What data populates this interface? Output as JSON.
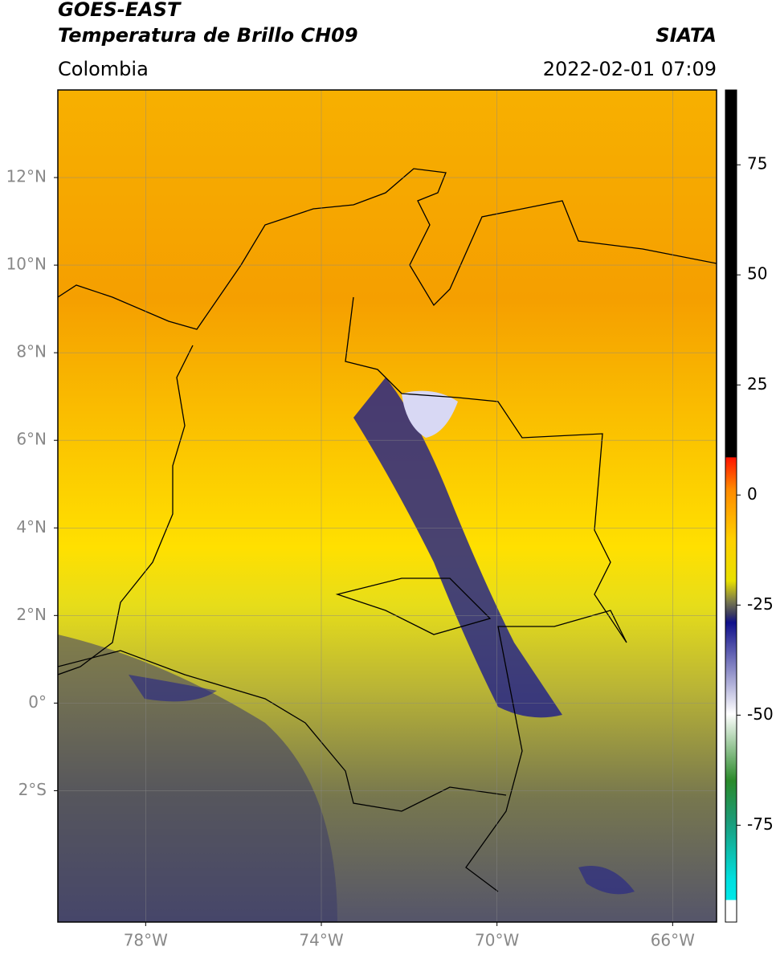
{
  "header": {
    "title_line1": "GOES-EAST",
    "title_line2": "Temperatura de Brillo CH09",
    "region": "Colombia",
    "source": "SIATA",
    "datetime": "2022-02-01 07:09"
  },
  "map": {
    "xlim": [
      -80,
      -65
    ],
    "ylim": [
      -5,
      14
    ],
    "xticks": [
      {
        "value": -78,
        "label": "78°W"
      },
      {
        "value": -74,
        "label": "74°W"
      },
      {
        "value": -70,
        "label": "70°W"
      },
      {
        "value": -66,
        "label": "66°W"
      }
    ],
    "yticks": [
      {
        "value": 12,
        "label": "12°N"
      },
      {
        "value": 10,
        "label": "10°N"
      },
      {
        "value": 8,
        "label": "8°N"
      },
      {
        "value": 6,
        "label": "6°N"
      },
      {
        "value": 4,
        "label": "4°N"
      },
      {
        "value": 2,
        "label": "2°N"
      },
      {
        "value": 0,
        "label": "0°"
      },
      {
        "value": -2,
        "label": "2°S"
      }
    ]
  },
  "colorbar": {
    "lim": [
      -97,
      92
    ],
    "ticks": [
      75,
      50,
      25,
      0,
      -25,
      -50,
      -75
    ]
  }
}
